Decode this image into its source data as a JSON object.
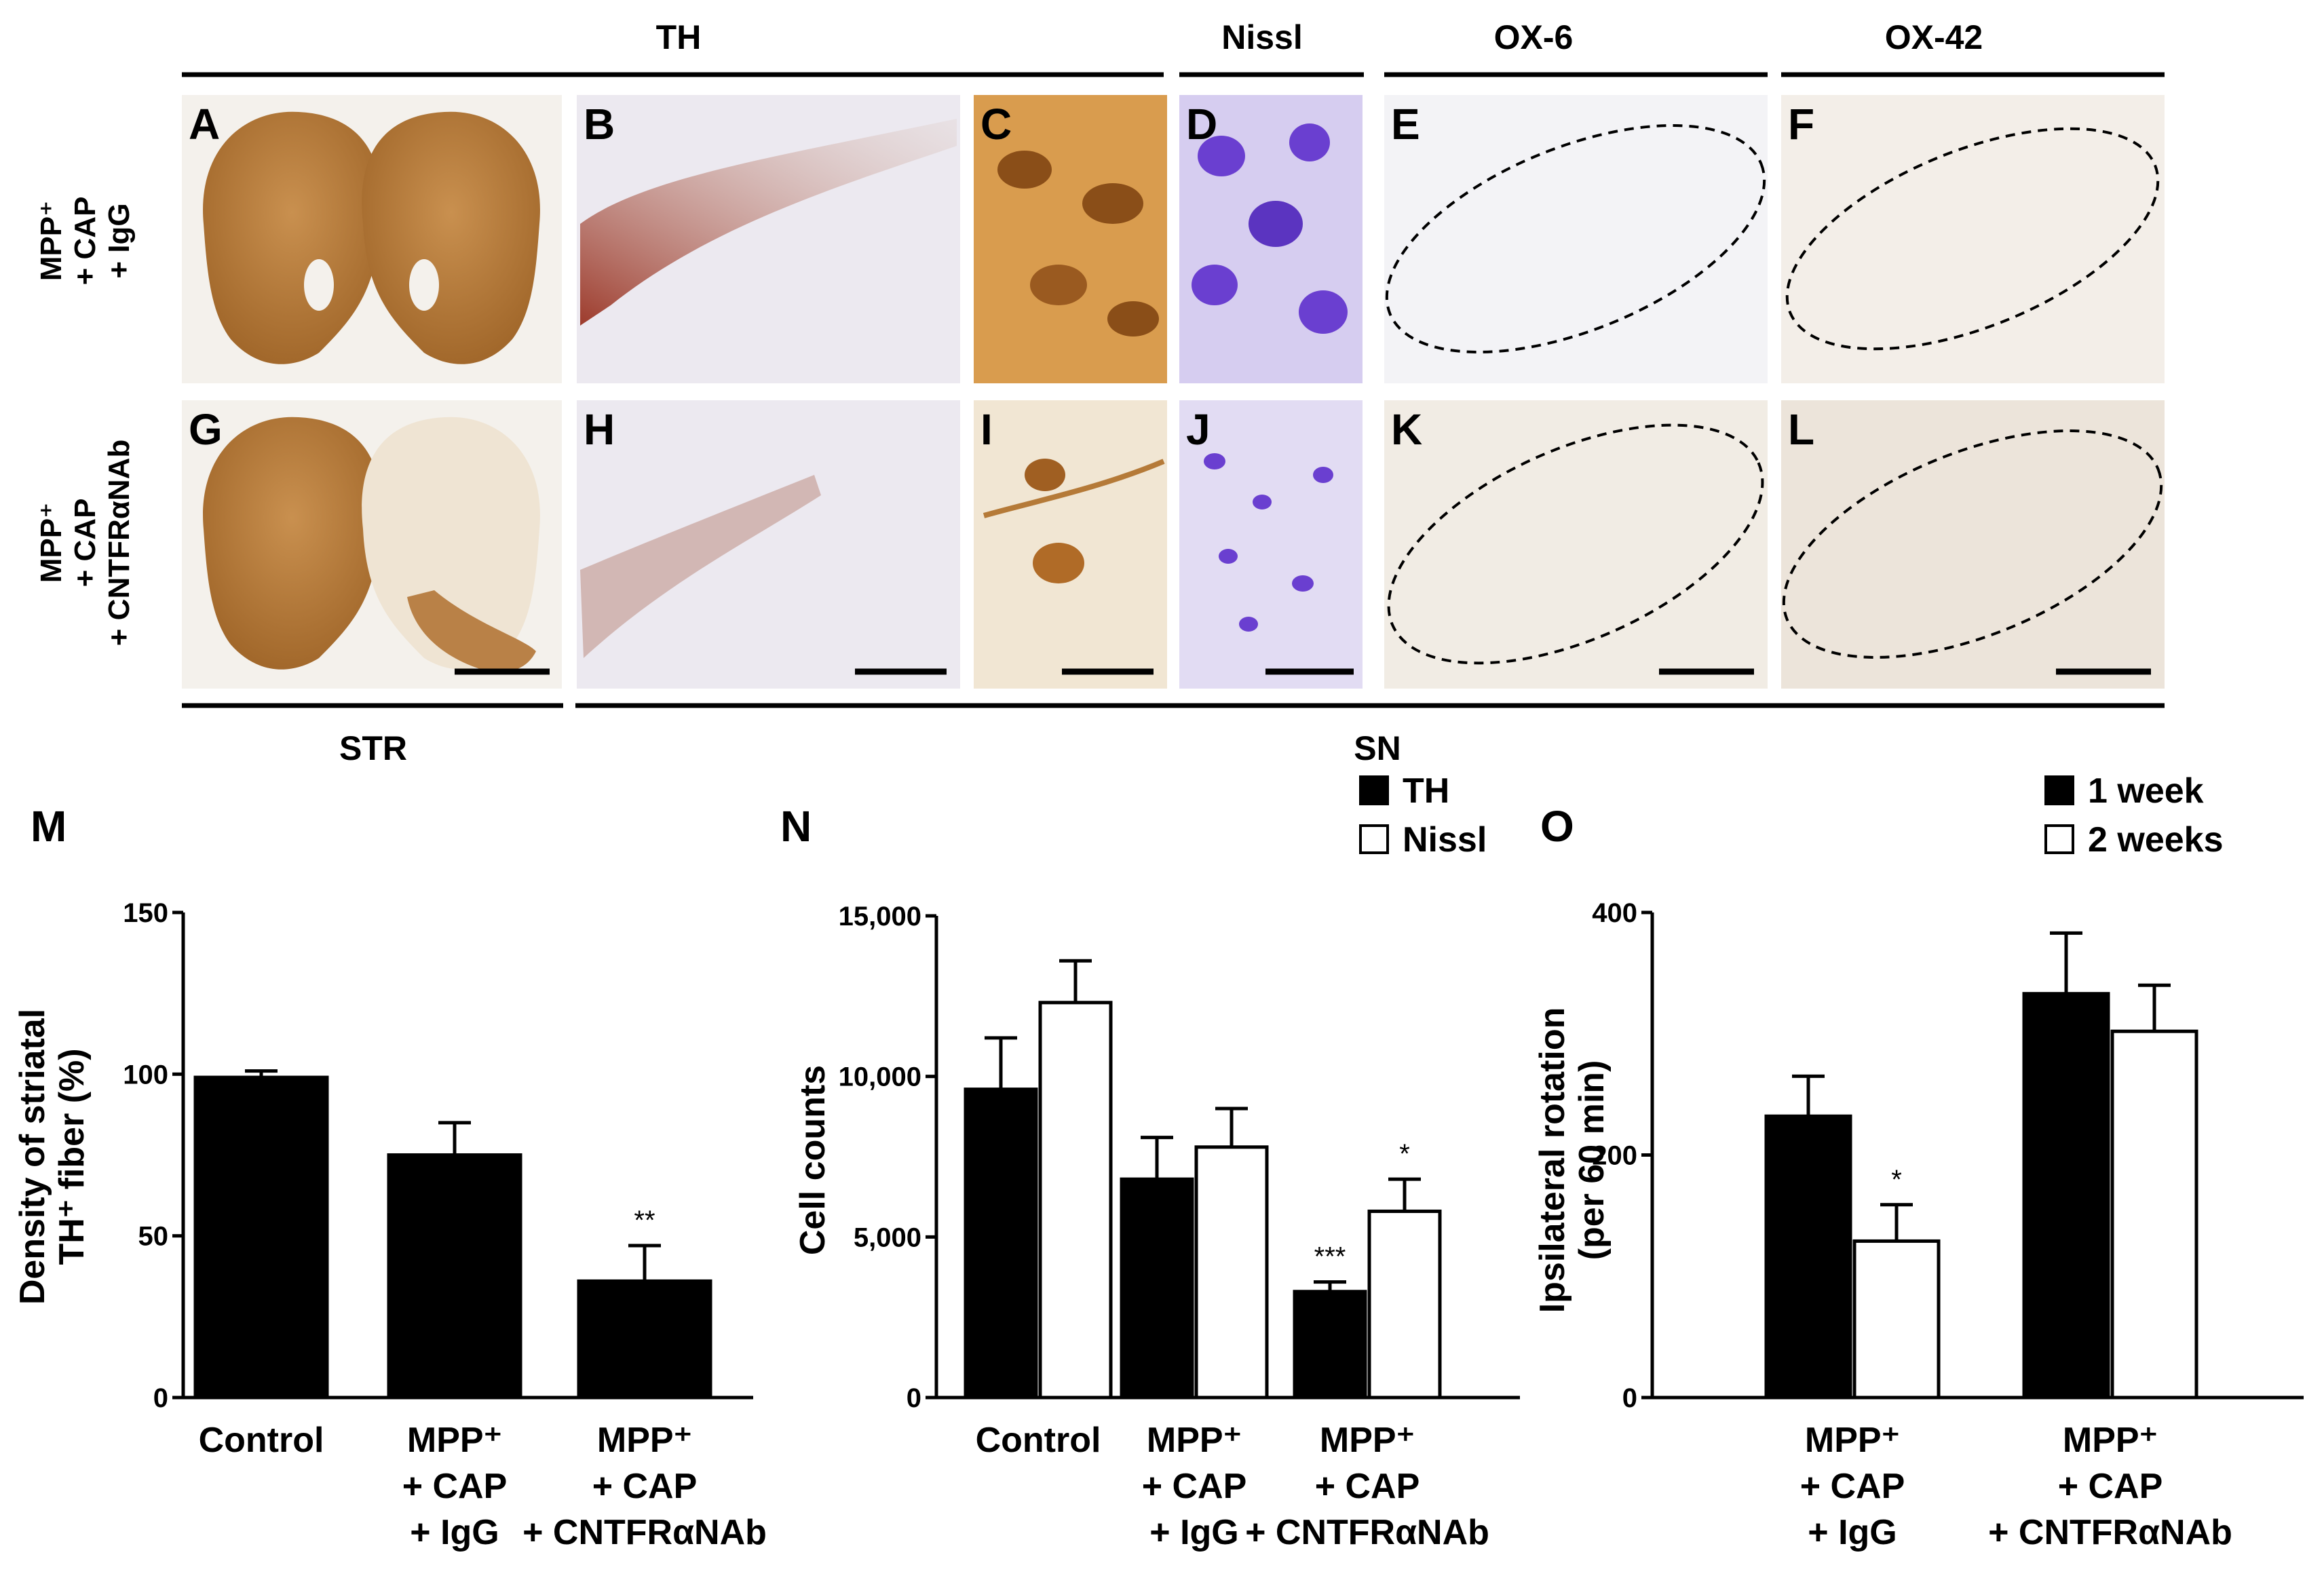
{
  "figure": {
    "column_headers": [
      "TH",
      "Nissl",
      "OX-6",
      "OX-42"
    ],
    "region_labels": [
      "STR",
      "SN"
    ],
    "row_labels": [
      [
        "MPP⁺",
        "+ CAP",
        "+ IgG"
      ],
      [
        "MPP⁺",
        "+ CAP",
        "+ CNTFRαNAb"
      ]
    ],
    "panel_letters": [
      "A",
      "B",
      "C",
      "D",
      "E",
      "F",
      "G",
      "H",
      "I",
      "J",
      "K",
      "L"
    ],
    "panel_letters_charts": [
      "M",
      "N",
      "O"
    ],
    "colors": {
      "bar_filled": "#000000",
      "bar_open": "#ffffff",
      "th_stain": "#a8672a",
      "nissl_stain": "#6a3fd0",
      "background_tissue": "#f2efe9"
    }
  },
  "chart_data": [
    {
      "panel": "M",
      "type": "bar",
      "categories": [
        [
          "Control"
        ],
        [
          "MPP⁺",
          "+ CAP",
          "+ IgG"
        ],
        [
          "MPP⁺",
          "+ CAP",
          "+ CNTFRαNAb"
        ]
      ],
      "ylabel": [
        "Density of striatal",
        "TH⁺ fiber (%)"
      ],
      "ylim": [
        0,
        150
      ],
      "yticks": [
        0,
        50,
        100,
        150
      ],
      "ytick_labels": [
        "0",
        "50",
        "100",
        "150"
      ],
      "series": [
        {
          "values": [
            99,
            75,
            36
          ],
          "errors": [
            2,
            10,
            11
          ],
          "fill": "black"
        }
      ],
      "annotations": [
        {
          "category": 2,
          "series": 0,
          "text": "**"
        }
      ]
    },
    {
      "panel": "N",
      "type": "bar",
      "categories": [
        [
          "Control"
        ],
        [
          "MPP⁺",
          "+ CAP",
          "+ IgG"
        ],
        [
          "MPP⁺",
          "+ CAP",
          "+ CNTFRαNAb"
        ]
      ],
      "ylabel": [
        "Cell counts"
      ],
      "ylim": [
        0,
        15000
      ],
      "yticks": [
        0,
        5000,
        10000,
        15000
      ],
      "ytick_labels": [
        "0",
        "5,000",
        "10,000",
        "15,000"
      ],
      "legend": [
        "TH",
        "Nissl"
      ],
      "series": [
        {
          "name": "TH",
          "values": [
            9600,
            6800,
            3300
          ],
          "errors": [
            1600,
            1300,
            300
          ],
          "fill": "black"
        },
        {
          "name": "Nissl",
          "values": [
            12300,
            7800,
            5800
          ],
          "errors": [
            1300,
            1200,
            1000
          ],
          "fill": "white"
        }
      ],
      "annotations": [
        {
          "category": 2,
          "series": 0,
          "text": "***"
        },
        {
          "category": 2,
          "series": 1,
          "text": "*"
        }
      ]
    },
    {
      "panel": "O",
      "type": "bar",
      "categories": [
        [
          "MPP⁺",
          "+ CAP",
          "+ IgG"
        ],
        [
          "MPP⁺",
          "+ CAP",
          "+ CNTFRαNAb"
        ]
      ],
      "ylabel": [
        "Ipsilateral rotation",
        "(per 60 min)"
      ],
      "ylim": [
        0,
        400
      ],
      "yticks": [
        0,
        200,
        400
      ],
      "ytick_labels": [
        "0",
        "200",
        "400"
      ],
      "legend": [
        "1 week",
        "2 weeks"
      ],
      "series": [
        {
          "name": "1 week",
          "values": [
            232,
            333
          ],
          "errors": [
            33,
            50
          ],
          "fill": "black"
        },
        {
          "name": "2 weeks",
          "values": [
            129,
            302
          ],
          "errors": [
            30,
            38
          ],
          "fill": "white"
        }
      ],
      "annotations": [
        {
          "category": 0,
          "series": 1,
          "text": "*"
        }
      ]
    }
  ]
}
